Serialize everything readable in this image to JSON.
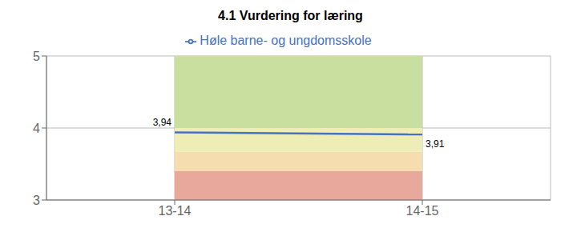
{
  "chart_data": {
    "type": "line",
    "title": "4.1 Vurdering for læring",
    "categories": [
      "13-14",
      "14-15"
    ],
    "series": [
      {
        "name": "Høle barne- og ungdomsskole",
        "color": "#4472c4",
        "values": [
          3.94,
          3.91
        ],
        "value_labels": [
          "3,94",
          "3,91"
        ]
      }
    ],
    "ylim": [
      3,
      5
    ],
    "yticks": [
      3,
      4,
      5
    ],
    "bands": [
      {
        "ymin": 3.0,
        "ymax": 3.4,
        "color": "#e8a89c"
      },
      {
        "ymin": 3.4,
        "ymax": 3.67,
        "color": "#f5ddb0"
      },
      {
        "ymin": 3.67,
        "ymax": 4.0,
        "color": "#eeedb5"
      },
      {
        "ymin": 4.0,
        "ymax": 5.0,
        "color": "#c8dfa0"
      }
    ],
    "grid": true,
    "legend": "top",
    "data_labels": true
  }
}
